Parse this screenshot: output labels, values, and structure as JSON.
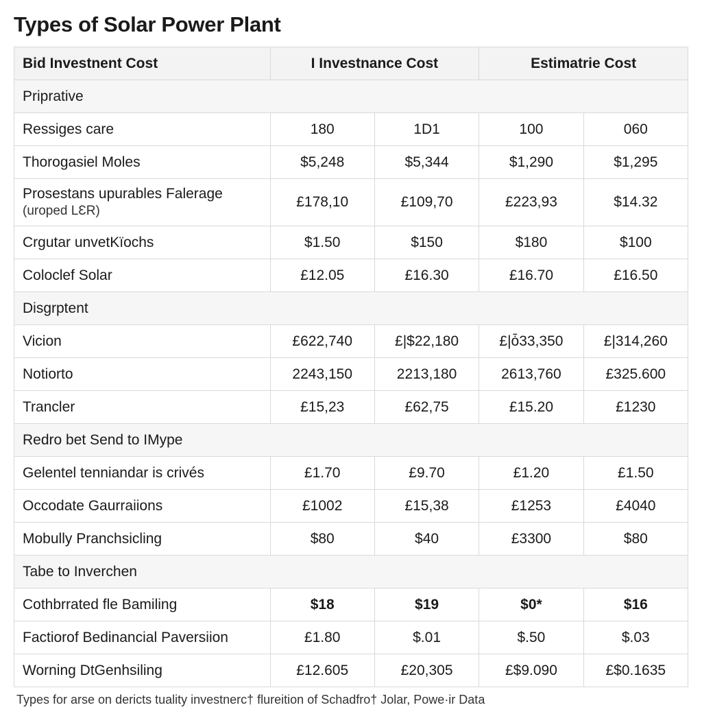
{
  "title": "Types of Solar Power Plant",
  "columns": [
    "Bid Investnent Cost",
    "I Investnance Cost",
    "Estimatrie Cost"
  ],
  "col_span": [
    1,
    2,
    2
  ],
  "sections": [
    {
      "name": "Priprative",
      "rows": [
        {
          "label": "Ressiges care",
          "vals": [
            "180",
            "1D1",
            "100",
            "060"
          ]
        },
        {
          "label": "Thorogasiel Moles",
          "vals": [
            "$5,248",
            "$5,344",
            "$1,290",
            "$1,295"
          ]
        },
        {
          "label": "Prosestans upurables Falerage<br><span class='sub'>(uroped LƐR)</span>",
          "vals": [
            "£178,10",
            "£109,70",
            "£223,93",
            "$14.32"
          ]
        },
        {
          "label": "Crgutar unvetKïochs",
          "vals": [
            "$1.50",
            "$150",
            "$180",
            "$100"
          ]
        },
        {
          "label": "Coloclef Solar",
          "vals": [
            "£12.05",
            "£16.30",
            "£16.70",
            "£16.50"
          ]
        }
      ]
    },
    {
      "name": "Disgrptent",
      "rows": [
        {
          "label": "Vicion",
          "vals": [
            "£622,740",
            "£|$22,180",
            "£|ȱ33,350",
            "£|314,260"
          ]
        },
        {
          "label": "Notiorto",
          "vals": [
            "2243,150",
            "2213,180",
            "2613,760",
            "£325.600"
          ]
        },
        {
          "label": "Trancler",
          "vals": [
            "£15,23",
            "£62,75",
            "£15.20",
            "£1230"
          ]
        }
      ]
    },
    {
      "name": "Redro bet Send to IMype",
      "rows": [
        {
          "label": "Gelentel tenniandar is crivés",
          "vals": [
            "£1.70",
            "£9.70",
            "£1.20",
            "£1.50"
          ]
        },
        {
          "label": "Occodate Gaurraiions",
          "vals": [
            "£1002",
            "£15,38",
            "£1253",
            "£4040"
          ]
        },
        {
          "label": "Mobully Pranchsicling",
          "vals": [
            "$80",
            "$40",
            "£3300",
            "$80"
          ]
        }
      ]
    },
    {
      "name": "Tabe to Inverchen",
      "rows": [
        {
          "label": "Cothbrrated fle Bamiling",
          "vals": [
            "$18",
            "$19",
            "$0*",
            "$16"
          ],
          "bold": true
        },
        {
          "label": "Factiorof Bedinancial Paversiion",
          "vals": [
            "£1.80",
            "$.01",
            "$.50",
            "$.03"
          ]
        },
        {
          "label": "Worning DtGenhsiling",
          "vals": [
            "£12.605",
            "£20,305",
            "£$9.090",
            "£$0.1635"
          ]
        }
      ]
    }
  ],
  "footnote": "Types for arse on dericts tuality investnerc† flureition of Schadfro† Jolar, Powe·ir Data",
  "colors": {
    "border": "#d9d9d9",
    "header_bg": "#f3f3f3",
    "section_bg": "#f6f6f6",
    "text": "#1a1a1a"
  },
  "fontsize": {
    "title": 31,
    "cell": 21,
    "footnote": 18
  }
}
